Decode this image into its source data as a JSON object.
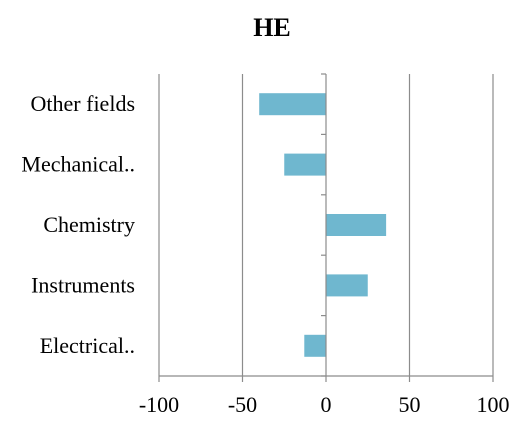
{
  "chart_data": {
    "type": "bar",
    "orientation": "horizontal",
    "title": "HE",
    "categories": [
      "Electrical..",
      "Instruments",
      "Chemistry",
      "Mechanical..",
      "Other fields"
    ],
    "values": [
      -13,
      25,
      36,
      -25,
      -40
    ],
    "xlim": [
      -100,
      100
    ],
    "xticks": [
      "-100",
      "-50",
      "0",
      "50",
      "100"
    ],
    "xtick_values": [
      -100,
      -50,
      0,
      50,
      100
    ],
    "grid": "vertical",
    "legend": "none",
    "colors": {
      "bar": "#6fb7cf",
      "grid": "#8c8c8c",
      "axis": "#8c8c8c"
    }
  }
}
